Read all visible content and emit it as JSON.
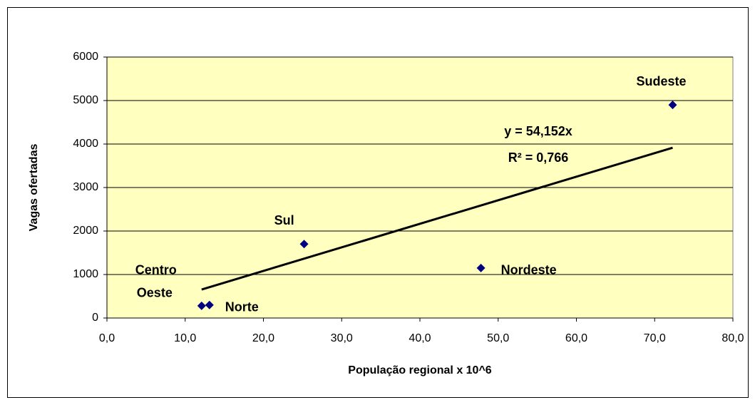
{
  "chart_data": {
    "type": "scatter",
    "x_label": "População regional x 10^6",
    "y_label": "Vagas ofertadas",
    "x": [
      12.1,
      13.1,
      25.2,
      47.8,
      72.3
    ],
    "values": [
      280,
      300,
      1700,
      1150,
      4900
    ],
    "point_labels": [
      [
        "Centro",
        "Oeste"
      ],
      [
        "Norte"
      ],
      [
        "Sul"
      ],
      [
        "Nordeste"
      ],
      [
        "Sudeste"
      ]
    ],
    "color": "#000080",
    "plot_background": "#ffffc0",
    "trendline": {
      "slope": 54.152,
      "equation": "y = 54,152x",
      "r_squared": "R² = 0,766",
      "color": "#000000"
    },
    "xlim": [
      0,
      80
    ],
    "xticks": [
      {
        "value": 0,
        "label": "0,0"
      },
      {
        "value": 10,
        "label": "10,0"
      },
      {
        "value": 20,
        "label": "20,0"
      },
      {
        "value": 30,
        "label": "30,0"
      },
      {
        "value": 40,
        "label": "40,0"
      },
      {
        "value": 50,
        "label": "50,0"
      },
      {
        "value": 60,
        "label": "60,0"
      },
      {
        "value": 70,
        "label": "70,0"
      },
      {
        "value": 80,
        "label": "80,0"
      }
    ],
    "ylim": [
      0,
      6000
    ],
    "yticks": [
      0,
      1000,
      2000,
      3000,
      4000,
      5000,
      6000
    ],
    "grid": true
  }
}
